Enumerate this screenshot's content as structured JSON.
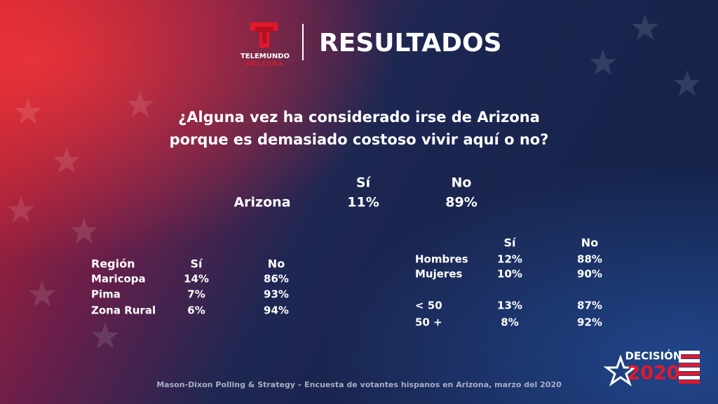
{
  "header": {
    "brand": "TELEMUNDO",
    "brand_sub": "ARIZONA",
    "title": "RESULTADOS"
  },
  "question": {
    "lines": [
      "¿Alguna vez ha considerado irse de Arizona",
      "porque es demasiado costoso vivir aquí o no?"
    ]
  },
  "overall": {
    "columns": [
      "Sí",
      "No"
    ],
    "row": [
      "Arizona",
      "11%",
      "89%"
    ]
  },
  "region_table": {
    "columns": [
      "Región",
      "Sí",
      "No"
    ],
    "rows": [
      [
        "Maricopa",
        "14%",
        "86%"
      ],
      [
        "Pima",
        "7%",
        "93%"
      ],
      [
        "Zona Rural",
        "6%",
        "94%"
      ]
    ]
  },
  "demographics_table": {
    "columns": [
      "Sí",
      "No"
    ],
    "rows": [
      [
        "Hombres",
        "12%",
        "88%"
      ],
      [
        "Mujeres",
        "10%",
        "90%"
      ],
      [
        "< 50",
        "13%",
        "87%"
      ],
      [
        "50 +",
        "8%",
        "92%"
      ]
    ]
  },
  "footer": {
    "source": "Mason-Dixon  Polling & Strategy – Encuesta de votantes hispanos en Arizona, marzo del 2020"
  },
  "badge": {
    "word": "DECISIÓN",
    "year": "2020"
  }
}
